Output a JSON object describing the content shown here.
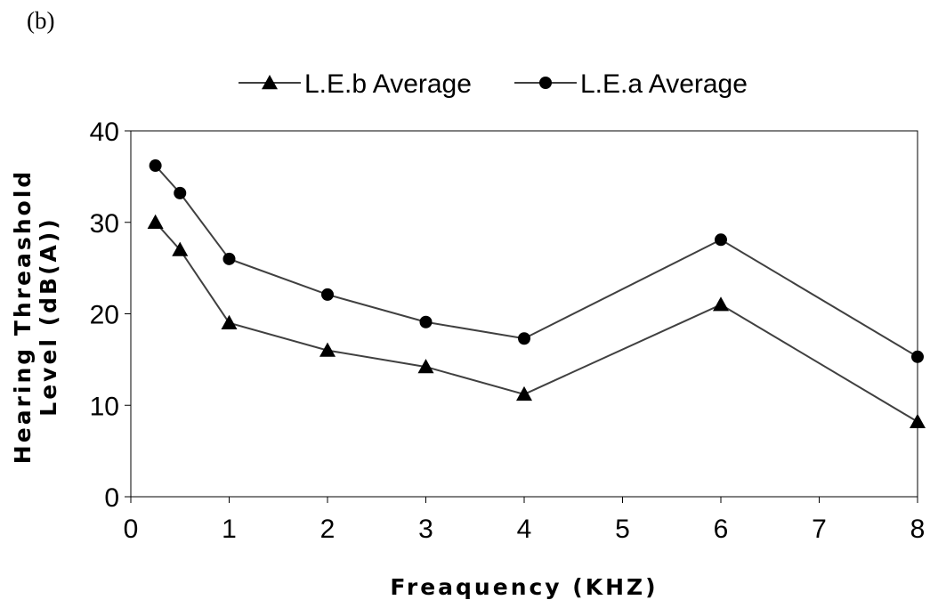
{
  "panel_label": "(b)",
  "chart_data": {
    "type": "line",
    "title": "",
    "xlabel": "Freaquency (KHZ)",
    "ylabel_lines": [
      "Hearing Threashold",
      "Level (dB(A))"
    ],
    "xlim": [
      0,
      8
    ],
    "ylim": [
      0,
      40
    ],
    "x_ticks": [
      0,
      1,
      2,
      3,
      4,
      5,
      6,
      7,
      8
    ],
    "y_ticks": [
      0,
      10,
      20,
      30,
      40
    ],
    "grid": false,
    "legend_position": "top",
    "x": [
      0.25,
      0.5,
      1,
      2,
      3,
      4,
      6,
      8
    ],
    "series": [
      {
        "name": "L.E.b Average",
        "marker": "triangle",
        "color": "#000000",
        "line_color": "#404040",
        "values": [
          30,
          27,
          19,
          16,
          14.2,
          11.2,
          21,
          8.2
        ]
      },
      {
        "name": "L.E.a Average",
        "marker": "circle",
        "color": "#000000",
        "line_color": "#404040",
        "values": [
          36.2,
          33.2,
          26,
          22.1,
          19.1,
          17.3,
          28.1,
          15.3
        ]
      }
    ]
  }
}
